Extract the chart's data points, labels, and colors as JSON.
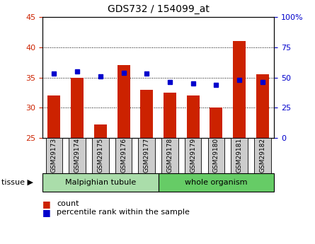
{
  "title": "GDS732 / 154099_at",
  "samples": [
    "GSM29173",
    "GSM29174",
    "GSM29175",
    "GSM29176",
    "GSM29177",
    "GSM29178",
    "GSM29179",
    "GSM29180",
    "GSM29181",
    "GSM29182"
  ],
  "counts": [
    32,
    35,
    27.2,
    37,
    33,
    32.5,
    32,
    30,
    41,
    35.5
  ],
  "percentiles": [
    53,
    55,
    51,
    54,
    53,
    46,
    45,
    44,
    48,
    46
  ],
  "ylim_left": [
    25,
    45
  ],
  "ylim_right": [
    0,
    100
  ],
  "yticks_left": [
    25,
    30,
    35,
    40,
    45
  ],
  "yticks_right": [
    0,
    25,
    50,
    75,
    100
  ],
  "bar_color": "#cc2200",
  "marker_color": "#0000cc",
  "bar_width": 0.55,
  "tissue_groups": [
    {
      "label": "Malpighian tubule",
      "start": 0,
      "end": 5,
      "color": "#aaddaa"
    },
    {
      "label": "whole organism",
      "start": 5,
      "end": 10,
      "color": "#66cc66"
    }
  ],
  "legend_count_label": "count",
  "legend_pct_label": "percentile rank within the sample",
  "tissue_label": "tissue",
  "background_color": "#ffffff"
}
